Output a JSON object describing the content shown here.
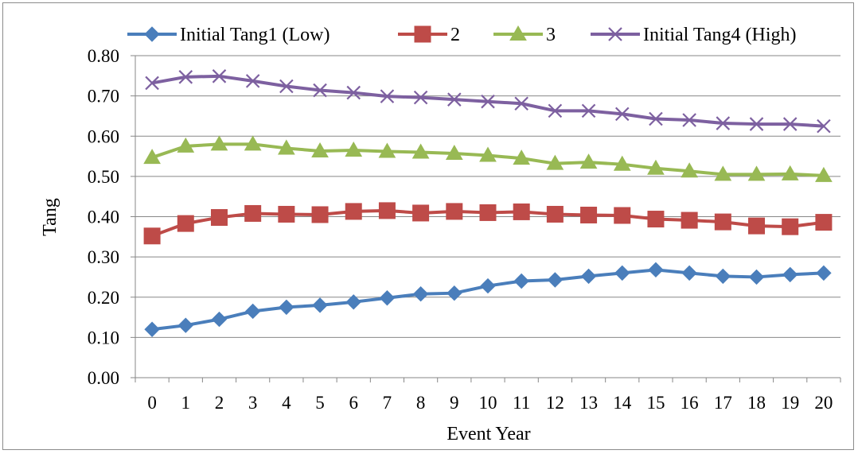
{
  "chart_data": {
    "type": "line",
    "title": "",
    "xlabel": "Event Year",
    "ylabel": "Tang",
    "ylim": [
      0,
      0.8
    ],
    "y_ticks": [
      "0.00",
      "0.10",
      "0.20",
      "0.30",
      "0.40",
      "0.50",
      "0.60",
      "0.70",
      "0.80"
    ],
    "categories": [
      "0",
      "1",
      "2",
      "3",
      "4",
      "5",
      "6",
      "7",
      "8",
      "9",
      "10",
      "11",
      "12",
      "13",
      "14",
      "15",
      "16",
      "17",
      "18",
      "19",
      "20"
    ],
    "grid": "horizontal",
    "legend_position": "top",
    "series": [
      {
        "name": "Initial Tang1 (Low)",
        "color": "#4a7ebb",
        "marker": "diamond",
        "values": [
          0.12,
          0.13,
          0.145,
          0.165,
          0.175,
          0.18,
          0.188,
          0.198,
          0.208,
          0.21,
          0.228,
          0.24,
          0.243,
          0.252,
          0.26,
          0.268,
          0.26,
          0.252,
          0.25,
          0.256,
          0.26
        ]
      },
      {
        "name": "2",
        "color": "#be4b48",
        "marker": "square",
        "values": [
          0.352,
          0.383,
          0.398,
          0.408,
          0.406,
          0.405,
          0.413,
          0.415,
          0.409,
          0.413,
          0.41,
          0.412,
          0.406,
          0.404,
          0.403,
          0.394,
          0.391,
          0.387,
          0.377,
          0.375,
          0.386
        ]
      },
      {
        "name": "3",
        "color": "#98b954",
        "marker": "triangle",
        "values": [
          0.547,
          0.575,
          0.58,
          0.58,
          0.57,
          0.563,
          0.565,
          0.562,
          0.56,
          0.557,
          0.552,
          0.545,
          0.532,
          0.535,
          0.53,
          0.52,
          0.513,
          0.505,
          0.505,
          0.506,
          0.502
        ]
      },
      {
        "name": "Initial Tang4 (High)",
        "color": "#7d60a0",
        "marker": "x",
        "values": [
          0.732,
          0.747,
          0.749,
          0.737,
          0.724,
          0.714,
          0.708,
          0.699,
          0.696,
          0.691,
          0.686,
          0.681,
          0.663,
          0.663,
          0.655,
          0.643,
          0.64,
          0.632,
          0.63,
          0.63,
          0.625
        ]
      }
    ]
  }
}
